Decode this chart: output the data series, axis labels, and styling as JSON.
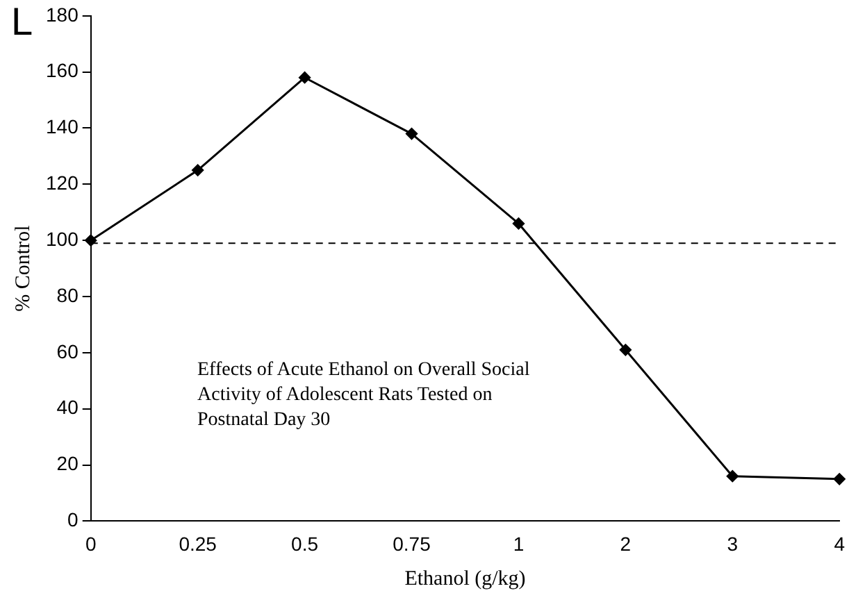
{
  "chart_data": {
    "type": "line",
    "xlabel": "Ethanol (g/kg)",
    "ylabel": "% Control",
    "categories": [
      "0",
      "0.25",
      "0.5",
      "0.75",
      "1",
      "2",
      "3",
      "4"
    ],
    "series": [
      {
        "color": "#000000",
        "values": [
          100,
          125,
          158,
          138,
          106,
          61,
          16,
          15
        ]
      }
    ],
    "ylim": [
      0,
      180
    ],
    "yticks": [
      0,
      20,
      40,
      60,
      80,
      100,
      120,
      140,
      160,
      180
    ],
    "ref_lines": [
      {
        "axis": "y",
        "value": 99,
        "color": "#000000",
        "line_style": "dashed"
      }
    ],
    "annotations": [
      "L",
      "Effects of Acute Ethanol on Overall Social\nActivity of Adolescent Rats Tested on\nPostnatal Day 30"
    ],
    "grid": false,
    "legend": false,
    "marker": "diamond",
    "line_style": "solid"
  }
}
